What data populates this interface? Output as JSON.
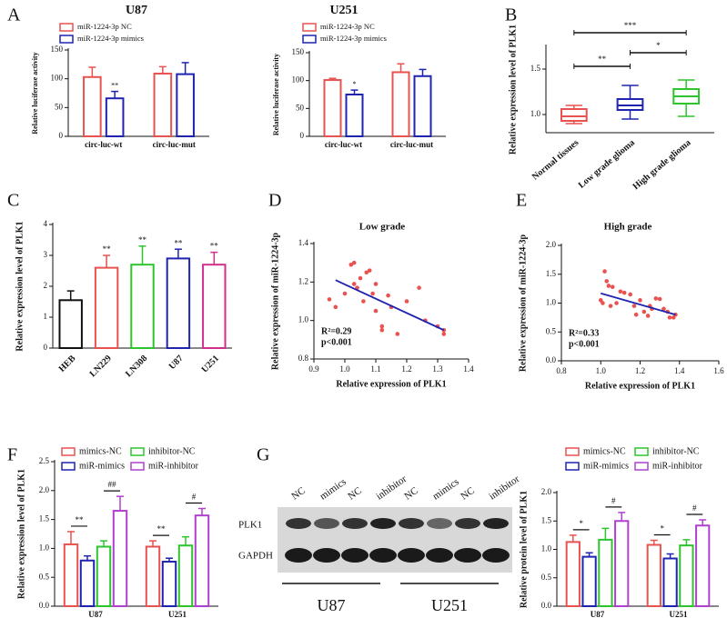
{
  "chart_data": [
    {
      "type": "bar",
      "panel": "A",
      "title": "U87",
      "ylabel": "Relative luciferase activity",
      "categories": [
        "circ-luc-wt",
        "circ-luc-mut"
      ],
      "series": [
        {
          "name": "miR-1224-3p NC",
          "color": "#e8524f",
          "values": [
            103,
            109
          ],
          "errors": [
            17,
            12
          ]
        },
        {
          "name": "miR-1224-3p mimics",
          "color": "#1f24b0",
          "values": [
            66,
            108
          ],
          "errors": [
            12,
            20
          ],
          "annotations": [
            "**",
            null
          ]
        }
      ],
      "ylim": [
        0,
        150
      ],
      "yticks": [
        0,
        50,
        100,
        150
      ]
    },
    {
      "type": "bar",
      "title": "U251",
      "ylabel": "Relative luciferase activity",
      "categories": [
        "circ-luc-wt",
        "circ-luc-mut"
      ],
      "series": [
        {
          "name": "miR-1224-3p NC",
          "color": "#e8524f",
          "values": [
            101,
            115
          ],
          "errors": [
            3,
            15
          ]
        },
        {
          "name": "miR-1224-3p mimics",
          "color": "#1f24b0",
          "values": [
            75,
            108
          ],
          "errors": [
            8,
            12
          ],
          "annotations": [
            "*",
            null
          ]
        }
      ],
      "ylim": [
        0,
        150
      ],
      "yticks": [
        0,
        50,
        100,
        150
      ]
    },
    {
      "type": "box",
      "panel": "B",
      "ylabel": "Relative expression level of PLK1",
      "categories": [
        "Normal tissues",
        "Low grade glioma",
        "High grade glioma"
      ],
      "colors": [
        "#e8524f",
        "#1f24b0",
        "#2cc52c"
      ],
      "boxes": [
        {
          "min": 0.9,
          "q1": 0.93,
          "median": 0.98,
          "q3": 1.06,
          "max": 1.1
        },
        {
          "min": 0.95,
          "q1": 1.05,
          "median": 1.1,
          "q3": 1.17,
          "max": 1.32
        },
        {
          "min": 0.98,
          "q1": 1.12,
          "median": 1.2,
          "q3": 1.28,
          "max": 1.38
        }
      ],
      "comparisons": [
        "**",
        "*",
        "***"
      ],
      "ylim": [
        0.8,
        1.75
      ],
      "yticks": [
        {
          "value": 1,
          "label": "1.0"
        },
        {
          "value": 1.5,
          "label": "1.5"
        }
      ]
    },
    {
      "type": "bar",
      "panel": "C",
      "ylabel": "Relative expression level of PLK1",
      "categories": [
        "HEB",
        "LN229",
        "LN308",
        "U87",
        "U251"
      ],
      "values": [
        1.55,
        2.6,
        2.7,
        2.9,
        2.7
      ],
      "errors": [
        0.3,
        0.4,
        0.6,
        0.3,
        0.4
      ],
      "colors": [
        "#111111",
        "#e8524f",
        "#2cc52c",
        "#1f24b0",
        "#d0308a"
      ],
      "annotations": [
        null,
        "**",
        "**",
        "**",
        "**"
      ],
      "ylim": [
        0,
        4
      ],
      "yticks": [
        0,
        1,
        2,
        3,
        4
      ]
    },
    {
      "type": "scatter",
      "panel": "D",
      "title": "Low grade",
      "xlabel": "Relative expression of PLK1",
      "ylabel": "Relative expression of miR-1224-3p",
      "color": "#e8524f",
      "x": [
        0.95,
        0.97,
        1.0,
        1.02,
        1.03,
        1.03,
        1.04,
        1.05,
        1.06,
        1.07,
        1.08,
        1.09,
        1.1,
        1.1,
        1.12,
        1.12,
        1.14,
        1.15,
        1.17,
        1.2,
        1.24,
        1.26,
        1.3,
        1.32,
        1.32
      ],
      "values": [
        1.11,
        1.07,
        1.14,
        1.29,
        1.3,
        1.19,
        1.17,
        1.22,
        1.1,
        1.25,
        1.26,
        1.14,
        1.19,
        1.05,
        0.97,
        0.95,
        1.13,
        1.07,
        0.93,
        1.1,
        1.17,
        1.0,
        0.97,
        0.93,
        0.95
      ],
      "fit": {
        "color": "#1f24b0",
        "x": [
          0.97,
          1.32
        ],
        "values": [
          1.21,
          0.95
        ]
      },
      "annotations": [
        "R²=0.29",
        "p<0.001"
      ],
      "xlim": [
        0.9,
        1.4
      ],
      "xticks": [
        0.9,
        {
          "value": 1,
          "label": "1.0"
        },
        1.1,
        1.2,
        1.3,
        1.4
      ],
      "ylim": [
        0.8,
        1.4
      ],
      "yticks": [
        0.8,
        {
          "value": 1,
          "label": "1.0"
        },
        1.2,
        1.4
      ]
    },
    {
      "type": "scatter",
      "panel": "E",
      "title": "High grade",
      "xlabel": "Relative expression of PLK1",
      "ylabel": "Relative expression of miR-1224-3p",
      "color": "#e8524f",
      "x": [
        1.02,
        1.03,
        1.0,
        1.01,
        1.04,
        1.06,
        1.08,
        1.1,
        1.12,
        1.15,
        1.17,
        1.18,
        1.2,
        1.22,
        1.24,
        1.26,
        1.28,
        1.3,
        1.32,
        1.34,
        1.35,
        1.37,
        1.38,
        1.25,
        1.05
      ],
      "values": [
        1.55,
        1.38,
        1.05,
        1.0,
        1.3,
        1.28,
        1.0,
        1.2,
        1.18,
        1.15,
        0.95,
        0.8,
        1.05,
        0.85,
        0.78,
        0.9,
        1.08,
        1.07,
        0.9,
        0.85,
        0.75,
        0.75,
        0.8,
        0.95,
        0.95
      ],
      "fit": {
        "color": "#1f24b0",
        "x": [
          1.0,
          1.38
        ],
        "values": [
          1.17,
          0.8
        ]
      },
      "annotations": [
        "R²=0.33",
        "p<0.001"
      ],
      "xlim": [
        0.8,
        1.6
      ],
      "xticks": [
        0.8,
        {
          "value": 1,
          "label": "1.0"
        },
        1.2,
        1.4,
        1.6
      ],
      "ylim": [
        0,
        2
      ],
      "yticks": [
        {
          "value": 0,
          "label": "0.0"
        },
        0.5,
        {
          "value": 1,
          "label": "1.0"
        },
        1.5,
        {
          "value": 2,
          "label": "2.0"
        }
      ]
    },
    {
      "type": "bar",
      "panel": "F",
      "ylabel": "Relative expression level of PLK1",
      "categories": [
        "U87",
        "U251"
      ],
      "series": [
        {
          "name": "mimics-NC",
          "color": "#e8524f",
          "values": [
            1.07,
            1.03
          ],
          "errors": [
            0.22,
            0.1
          ]
        },
        {
          "name": "miR-mimics",
          "color": "#1f24b0",
          "values": [
            0.79,
            0.77
          ],
          "errors": [
            0.08,
            0.06
          ],
          "annotations": [
            "**",
            "**"
          ]
        },
        {
          "name": "inhibitor-NC",
          "color": "#2cc52c",
          "values": [
            1.03,
            1.05
          ],
          "errors": [
            0.1,
            0.15
          ]
        },
        {
          "name": "miR-inhibitor",
          "color": "#b040d0",
          "values": [
            1.65,
            1.57
          ],
          "errors": [
            0.25,
            0.12
          ],
          "annotations": [
            "##",
            "#"
          ]
        }
      ],
      "ylim": [
        0,
        2.5
      ],
      "yticks": [
        {
          "value": 0,
          "label": "0.0"
        },
        0.5,
        {
          "value": 1,
          "label": "1.0"
        },
        1.5,
        {
          "value": 2,
          "label": "2.0"
        },
        2.5
      ]
    },
    {
      "type": "bar",
      "ylabel": "Relative protein level of PLK1",
      "categories": [
        "U87",
        "U251"
      ],
      "series": [
        {
          "name": "mimics-NC",
          "color": "#e8524f",
          "values": [
            1.13,
            1.08
          ],
          "errors": [
            0.12,
            0.08
          ]
        },
        {
          "name": "miR-mimics",
          "color": "#1f24b0",
          "values": [
            0.87,
            0.84
          ],
          "errors": [
            0.07,
            0.08
          ],
          "annotations": [
            "*",
            "*"
          ]
        },
        {
          "name": "inhibitor-NC",
          "color": "#2cc52c",
          "values": [
            1.17,
            1.07
          ],
          "errors": [
            0.2,
            0.1
          ]
        },
        {
          "name": "miR-inhibitor",
          "color": "#b040d0",
          "values": [
            1.5,
            1.42
          ],
          "errors": [
            0.15,
            0.1
          ],
          "annotations": [
            "#",
            "#"
          ]
        }
      ],
      "ylim": [
        0,
        2
      ],
      "yticks": [
        {
          "value": 0,
          "label": "0.0"
        },
        0.5,
        {
          "value": 1,
          "label": "1.0"
        },
        1.5,
        {
          "value": 2,
          "label": "2.0"
        }
      ]
    }
  ],
  "blot": {
    "panel": "G",
    "lanes": [
      "NC",
      "mimics",
      "NC",
      "inhibitor",
      "NC",
      "mimics",
      "NC",
      "inhibitor"
    ],
    "proteins": [
      "PLK1",
      "GAPDH"
    ],
    "groups": [
      "U87",
      "U251"
    ]
  }
}
